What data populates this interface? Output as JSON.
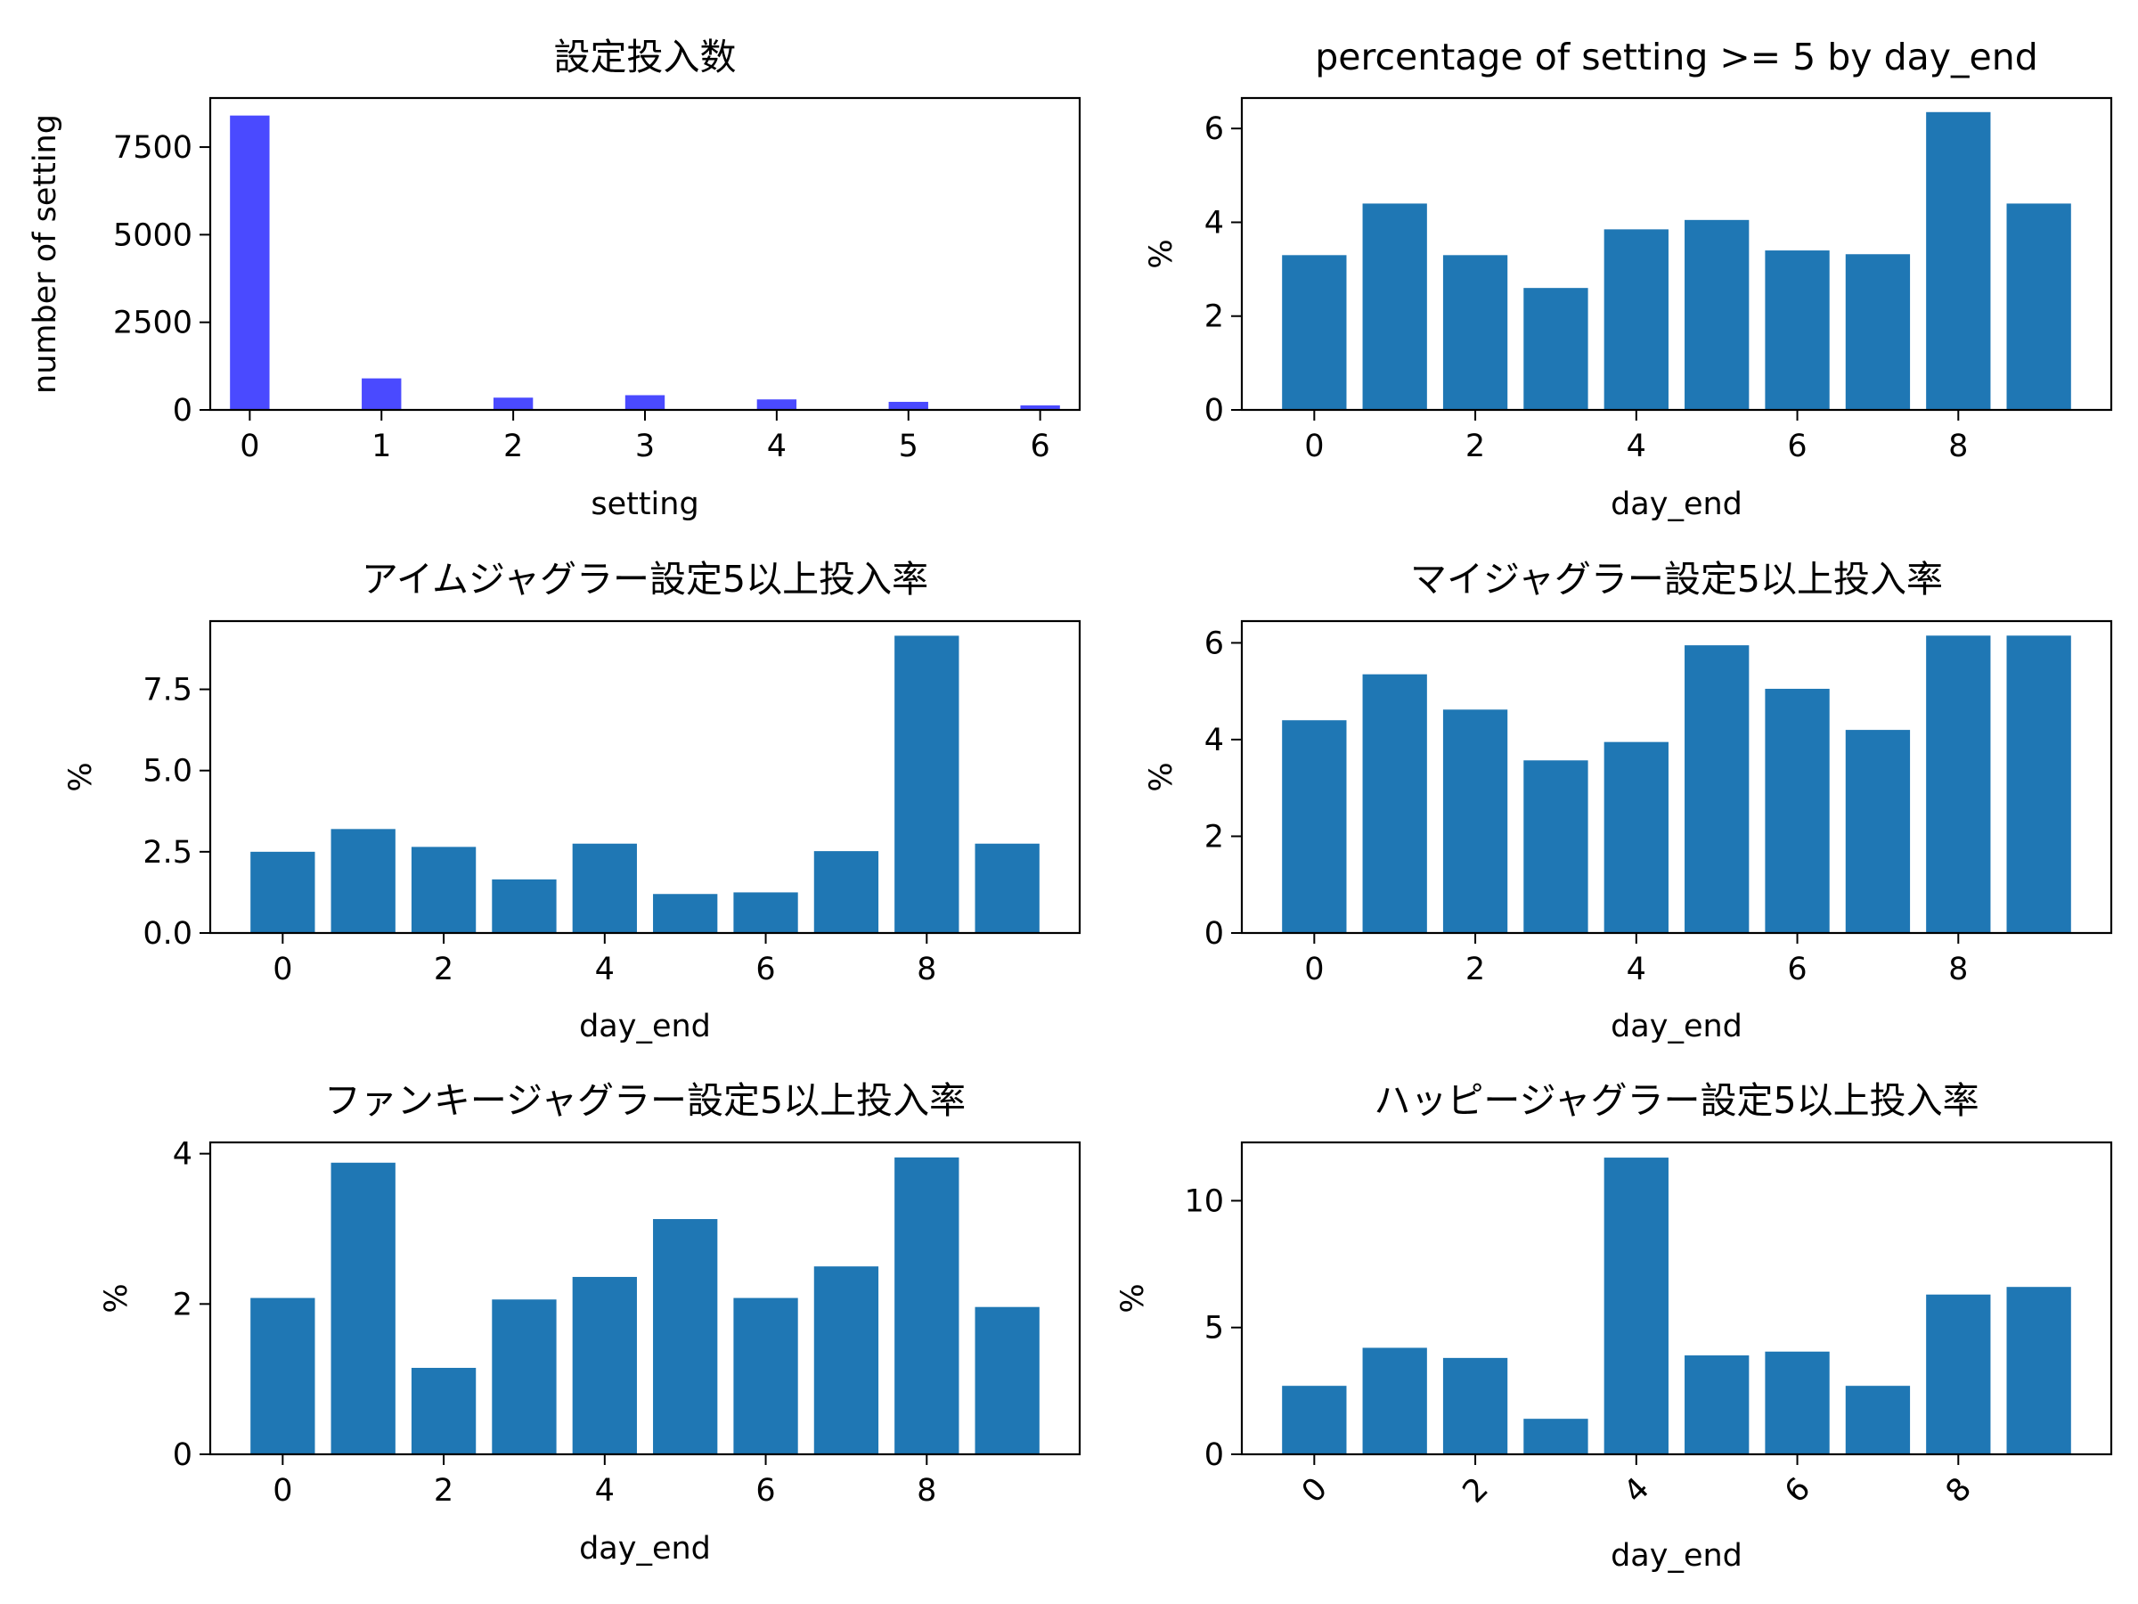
{
  "chart_data": [
    {
      "type": "bar",
      "title": "設定投入数",
      "xlabel": "setting",
      "ylabel": "number of setting",
      "bar_color": "#4a4aff",
      "x": [
        0,
        1,
        2,
        3,
        4,
        5,
        6
      ],
      "values": [
        8400,
        900,
        350,
        420,
        300,
        230,
        130
      ],
      "xlim": [
        -0.3,
        6.3
      ],
      "ylim": [
        0,
        8900
      ],
      "xticks": [
        0,
        1,
        2,
        3,
        4,
        5,
        6
      ],
      "yticks": [
        0,
        2500,
        5000,
        7500
      ],
      "xtick_labels": [
        "0",
        "1",
        "2",
        "3",
        "4",
        "5",
        "6"
      ],
      "ytick_labels": [
        "0",
        "2500",
        "5000",
        "7500"
      ]
    },
    {
      "type": "bar",
      "title": "percentage of setting >= 5 by day_end",
      "xlabel": "day_end",
      "ylabel": "%",
      "bar_color": "#1f77b4",
      "x": [
        0,
        1,
        2,
        3,
        4,
        5,
        6,
        7,
        8,
        9
      ],
      "values": [
        3.3,
        4.4,
        3.3,
        2.6,
        3.85,
        4.05,
        3.4,
        3.32,
        6.35,
        4.4
      ],
      "xlim": [
        -0.9,
        9.9
      ],
      "ylim": [
        0,
        6.65
      ],
      "xticks": [
        0,
        2,
        4,
        6,
        8
      ],
      "yticks": [
        0,
        2,
        4,
        6
      ],
      "xtick_labels": [
        "0",
        "2",
        "4",
        "6",
        "8"
      ],
      "ytick_labels": [
        "0",
        "2",
        "4",
        "6"
      ]
    },
    {
      "type": "bar",
      "title": "アイムジャグラー設定5以上投入率",
      "xlabel": "day_end",
      "ylabel": "%",
      "bar_color": "#1f77b4",
      "x": [
        0,
        1,
        2,
        3,
        4,
        5,
        6,
        7,
        8,
        9
      ],
      "values": [
        2.5,
        3.2,
        2.65,
        1.65,
        2.75,
        1.2,
        1.25,
        2.52,
        9.15,
        2.75
      ],
      "xlim": [
        -0.9,
        9.9
      ],
      "ylim": [
        0,
        9.6
      ],
      "xticks": [
        0,
        2,
        4,
        6,
        8
      ],
      "yticks": [
        0,
        2.5,
        5,
        7.5
      ],
      "xtick_labels": [
        "0",
        "2",
        "4",
        "6",
        "8"
      ],
      "ytick_labels": [
        "0.0",
        "2.5",
        "5.0",
        "7.5"
      ]
    },
    {
      "type": "bar",
      "title": "マイジャグラー設定5以上投入率",
      "xlabel": "day_end",
      "ylabel": "%",
      "bar_color": "#1f77b4",
      "x": [
        0,
        1,
        2,
        3,
        4,
        5,
        6,
        7,
        8,
        9
      ],
      "values": [
        4.4,
        5.35,
        4.62,
        3.57,
        3.95,
        5.95,
        5.05,
        4.2,
        6.15,
        6.15
      ],
      "xlim": [
        -0.9,
        9.9
      ],
      "ylim": [
        0,
        6.45
      ],
      "xticks": [
        0,
        2,
        4,
        6,
        8
      ],
      "yticks": [
        0,
        2,
        4,
        6
      ],
      "xtick_labels": [
        "0",
        "2",
        "4",
        "6",
        "8"
      ],
      "ytick_labels": [
        "0",
        "2",
        "4",
        "6"
      ]
    },
    {
      "type": "bar",
      "title": "ファンキージャグラー設定5以上投入率",
      "xlabel": "day_end",
      "ylabel": "%",
      "bar_color": "#1f77b4",
      "x": [
        0,
        1,
        2,
        3,
        4,
        5,
        6,
        7,
        8,
        9
      ],
      "values": [
        2.08,
        3.88,
        1.15,
        2.06,
        2.36,
        3.13,
        2.08,
        2.5,
        3.95,
        1.96
      ],
      "xlim": [
        -0.9,
        9.9
      ],
      "ylim": [
        0,
        4.15
      ],
      "xticks": [
        0,
        2,
        4,
        6,
        8
      ],
      "yticks": [
        0,
        2,
        4
      ],
      "xtick_labels": [
        "0",
        "2",
        "4",
        "6",
        "8"
      ],
      "ytick_labels": [
        "0",
        "2",
        "4"
      ]
    },
    {
      "type": "bar",
      "title": "ハッピージャグラー設定5以上投入率",
      "xlabel": "day_end",
      "ylabel": "%",
      "bar_color": "#1f77b4",
      "x": [
        0,
        1,
        2,
        3,
        4,
        5,
        6,
        7,
        8,
        9
      ],
      "values": [
        2.7,
        4.2,
        3.8,
        1.4,
        11.7,
        3.9,
        4.05,
        2.7,
        6.3,
        6.6
      ],
      "xlim": [
        -0.9,
        9.9
      ],
      "ylim": [
        0,
        12.3
      ],
      "xticks": [
        0,
        2,
        4,
        6,
        8
      ],
      "yticks": [
        0,
        5,
        10
      ],
      "xtick_labels": [
        "0",
        "2",
        "4",
        "6",
        "8"
      ],
      "ytick_labels": [
        "0",
        "5",
        "10"
      ],
      "xtick_rotation": 45
    }
  ]
}
